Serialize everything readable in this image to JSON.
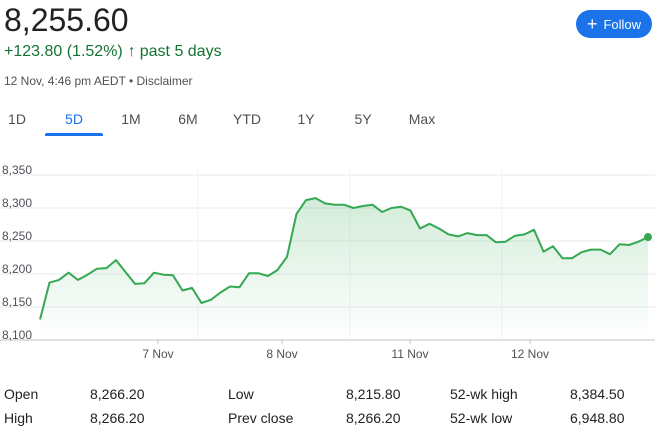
{
  "quote": {
    "price": "8,255.60",
    "change": "+123.80 (1.52%)",
    "change_arrow": "↑",
    "period": "past 5 days",
    "timestamp": "12 Nov, 4:46 pm AEDT",
    "separator": " • ",
    "disclaimer": "Disclaimer"
  },
  "follow_button": {
    "icon": "plus-icon",
    "label": "Follow",
    "color": "#1a73e8"
  },
  "tabs": [
    {
      "label": "1D",
      "active": false
    },
    {
      "label": "5D",
      "active": true
    },
    {
      "label": "1M",
      "active": false
    },
    {
      "label": "6M",
      "active": false
    },
    {
      "label": "YTD",
      "active": false
    },
    {
      "label": "1Y",
      "active": false
    },
    {
      "label": "5Y",
      "active": false
    },
    {
      "label": "Max",
      "active": false
    }
  ],
  "chart_data": {
    "type": "area",
    "line_color": "#34a853",
    "ylim": [
      8100,
      8350
    ],
    "yticks": [
      "8,350",
      "8,300",
      "8,250",
      "8,200",
      "8,150",
      "8,100"
    ],
    "xticks": [
      "7 Nov",
      "8 Nov",
      "11 Nov",
      "12 Nov"
    ],
    "grid": true,
    "values": [
      8131,
      8187,
      8191,
      8202,
      8191,
      8199,
      8208,
      8209,
      8221,
      8203,
      8185,
      8186,
      8202,
      8199,
      8198,
      8175,
      8179,
      8156,
      8161,
      8172,
      8181,
      8180,
      8201,
      8201,
      8197,
      8206,
      8226,
      8291,
      8312,
      8315,
      8307,
      8305,
      8305,
      8300,
      8303,
      8305,
      8294,
      8300,
      8302,
      8296,
      8269,
      8276,
      8269,
      8260,
      8257,
      8262,
      8259,
      8259,
      8248,
      8249,
      8258,
      8260,
      8267,
      8234,
      8242,
      8224,
      8224,
      8233,
      8237,
      8237,
      8230,
      8245,
      8244,
      8249,
      8256
    ]
  },
  "stats": [
    {
      "label": "Open",
      "value": "8,266.20"
    },
    {
      "label": "High",
      "value": "8,266.20"
    },
    {
      "label": "Low",
      "value": "8,215.80"
    },
    {
      "label": "Prev close",
      "value": "8,266.20"
    },
    {
      "label": "52-wk high",
      "value": "8,384.50"
    },
    {
      "label": "52-wk low",
      "value": "6,948.80"
    }
  ]
}
